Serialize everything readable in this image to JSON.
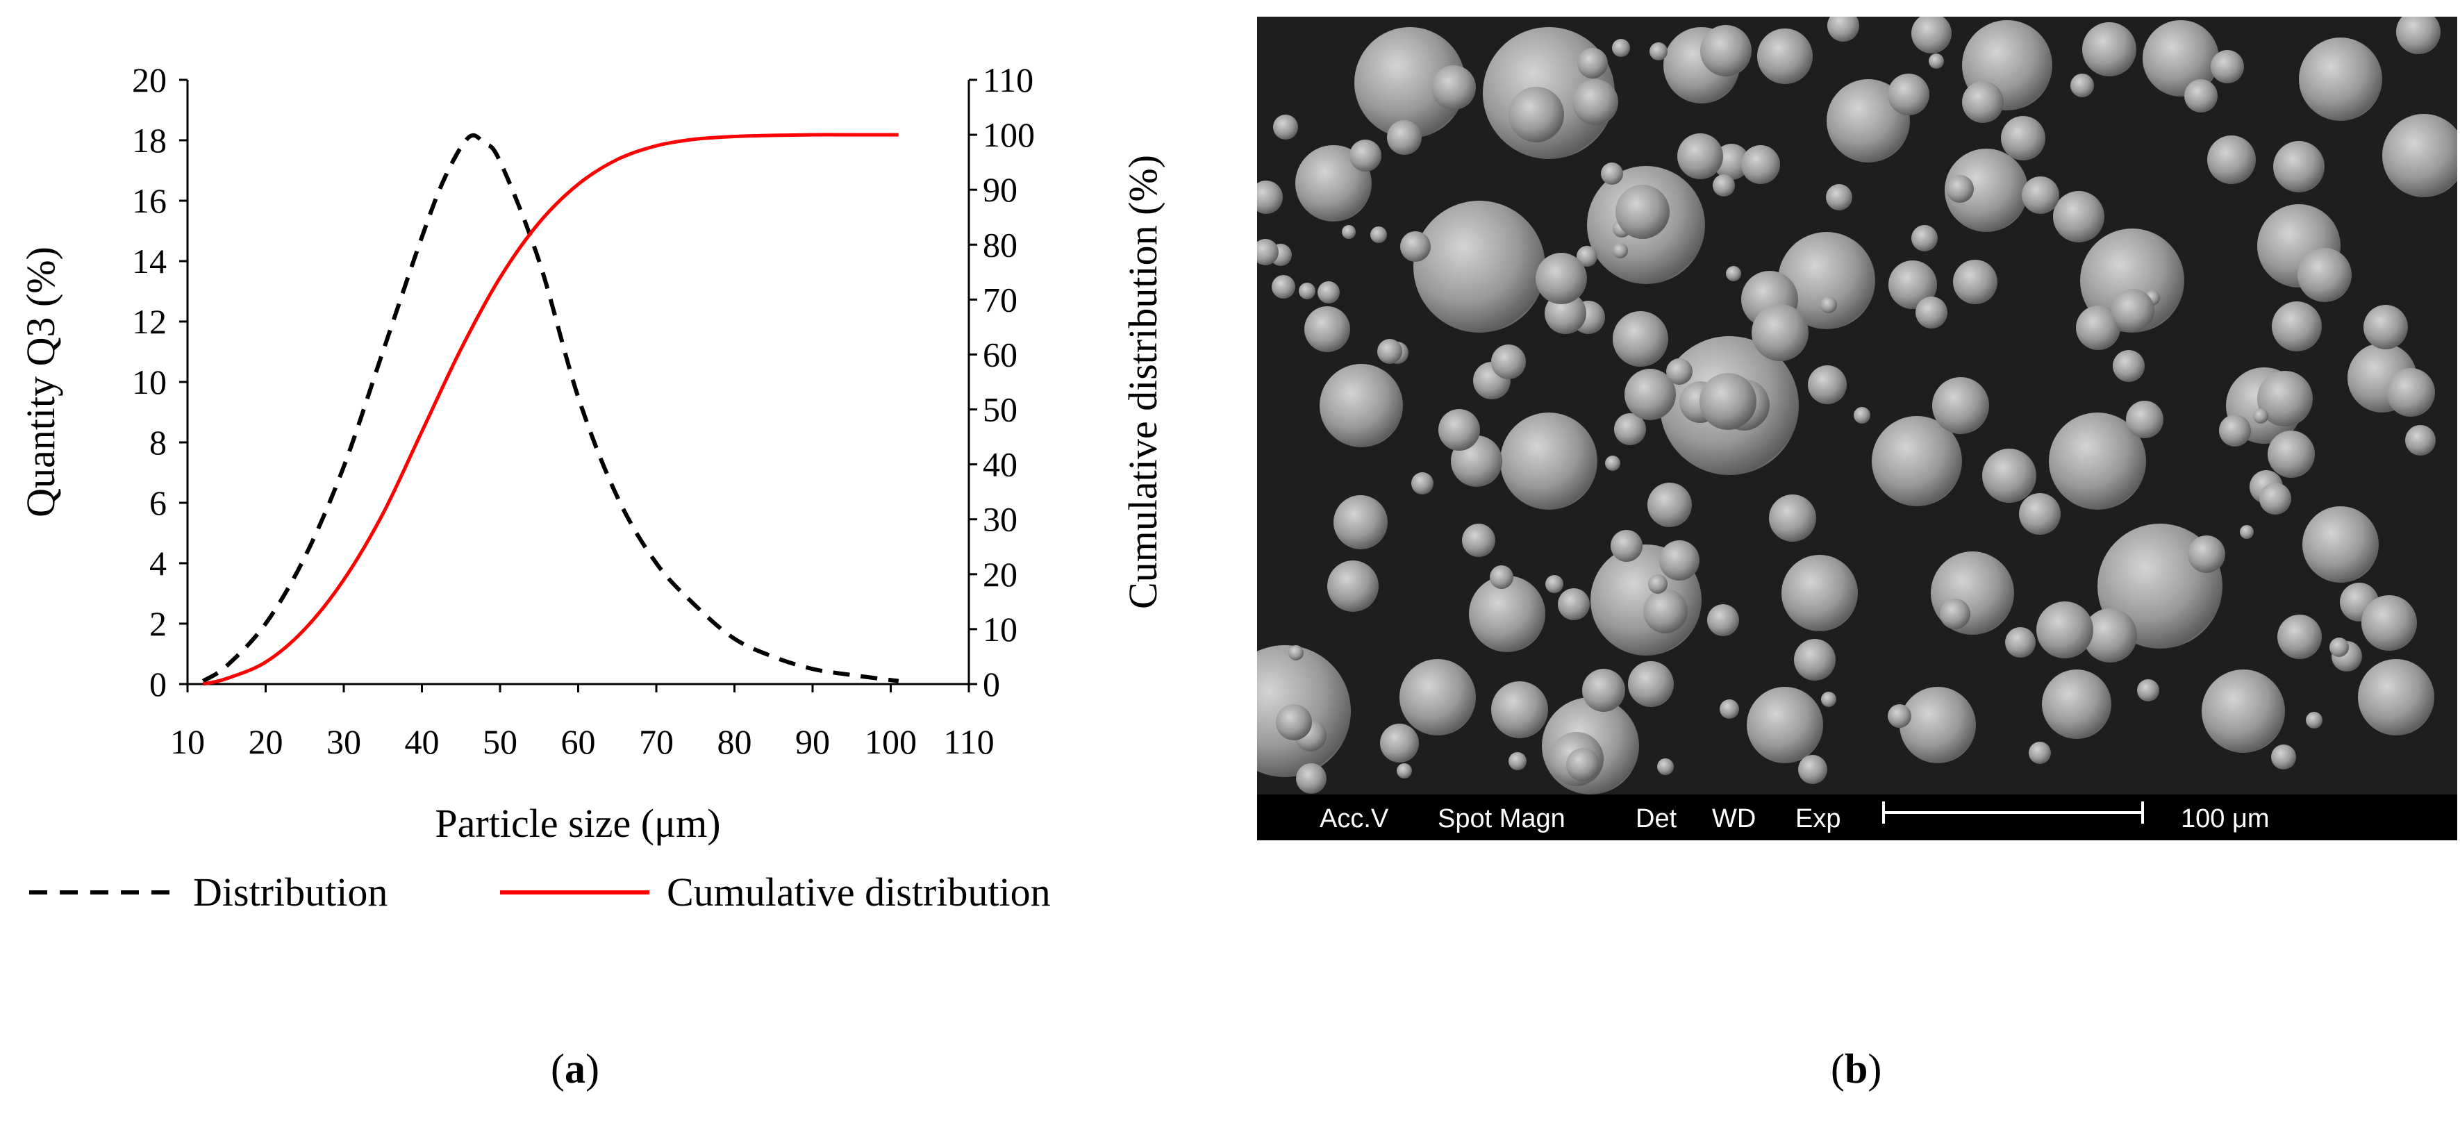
{
  "panel_labels": {
    "a": "a",
    "b": "b"
  },
  "chart_data": {
    "type": "line",
    "xlabel": "Particle size (μm)",
    "ylabel_left": "Quantity Q3 (%)",
    "ylabel_right": "Cumulative distribution (%)",
    "xlim": [
      10,
      110
    ],
    "ylim_left": [
      0,
      20
    ],
    "ylim_right": [
      0,
      110
    ],
    "x_ticks": [
      "10",
      "20",
      "30",
      "40",
      "50",
      "60",
      "70",
      "80",
      "90",
      "100",
      "110"
    ],
    "y_left_ticks": [
      "0",
      "2",
      "4",
      "6",
      "8",
      "10",
      "12",
      "14",
      "16",
      "18",
      "20"
    ],
    "y_right_ticks": [
      "0",
      "10",
      "20",
      "30",
      "40",
      "50",
      "60",
      "70",
      "80",
      "90",
      "100",
      "110"
    ],
    "grid": false,
    "legend_position": "bottom",
    "series": [
      {
        "name": "Distribution",
        "axis": "left",
        "color": "#000000",
        "style": "dashed",
        "x": [
          12,
          15,
          20,
          25,
          30,
          35,
          40,
          43,
          46,
          48,
          50,
          55,
          60,
          65,
          70,
          75,
          80,
          85,
          90,
          95,
          101
        ],
        "y": [
          0.1,
          0.6,
          2.0,
          4.2,
          7.2,
          11.0,
          14.8,
          16.8,
          18.1,
          17.9,
          17.3,
          14.0,
          9.5,
          6.2,
          4.0,
          2.6,
          1.5,
          0.9,
          0.5,
          0.3,
          0.1
        ]
      },
      {
        "name": "Cumulative distribution",
        "axis": "right",
        "color": "#ff0000",
        "style": "solid",
        "x": [
          12,
          15,
          20,
          25,
          30,
          35,
          40,
          45,
          50,
          55,
          60,
          65,
          70,
          75,
          80,
          85,
          90,
          95,
          101
        ],
        "y": [
          0,
          1,
          4,
          10,
          19,
          31,
          46,
          61,
          74,
          84,
          91,
          95.5,
          98,
          99.2,
          99.7,
          99.9,
          100,
          100,
          100
        ]
      }
    ]
  },
  "sem_image": {
    "scale_labels": {
      "acc_v": "Acc.V",
      "spot_magn": "Spot Magn",
      "det": "Det",
      "wd": "WD",
      "exp": "Exp",
      "scale": "100 μm"
    }
  }
}
